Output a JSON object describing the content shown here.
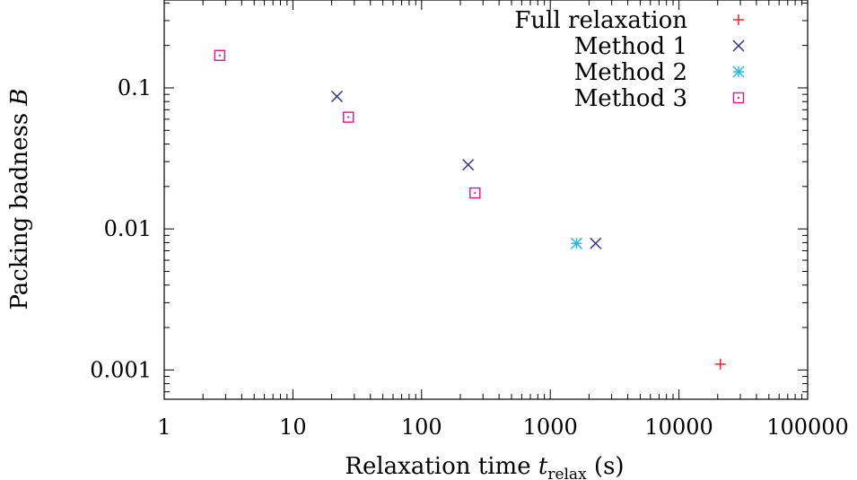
{
  "chart_data": {
    "type": "scatter",
    "title": "",
    "xlabel": {
      "prefix": "Relaxation time ",
      "symbol": "t",
      "subscript": "relax",
      "suffix": " (s)"
    },
    "ylabel": {
      "prefix": "Packing badness ",
      "symbol": "B"
    },
    "xscale": "log",
    "yscale": "log",
    "xlim": [
      1,
      100000
    ],
    "ylim": [
      0.00062,
      0.42
    ],
    "xticks": [
      1,
      10,
      100,
      1000,
      10000,
      100000
    ],
    "xtick_labels": [
      "1",
      "10",
      "100",
      "1000",
      "10000",
      "100000"
    ],
    "yticks": [
      0.001,
      0.01,
      0.1
    ],
    "ytick_labels": [
      "0.001",
      "0.01",
      "0.1"
    ],
    "grid": false,
    "legend_position": "top-right",
    "series": [
      {
        "name": "Full relaxation",
        "marker": "plus",
        "color": "#e41a1c",
        "points": [
          [
            21000,
            0.0011
          ]
        ]
      },
      {
        "name": "Method 1",
        "marker": "cross",
        "color": "#2b2b8c",
        "points": [
          [
            22,
            0.087
          ],
          [
            230,
            0.0285
          ],
          [
            2250,
            0.0079
          ]
        ]
      },
      {
        "name": "Method 2",
        "marker": "star",
        "color": "#19b9e6",
        "points": [
          [
            1600,
            0.0079
          ]
        ]
      },
      {
        "name": "Method 3",
        "marker": "square-dot",
        "color": "#e0148a",
        "points": [
          [
            2.7,
            0.17
          ],
          [
            27,
            0.062
          ],
          [
            260,
            0.018
          ]
        ]
      }
    ]
  }
}
